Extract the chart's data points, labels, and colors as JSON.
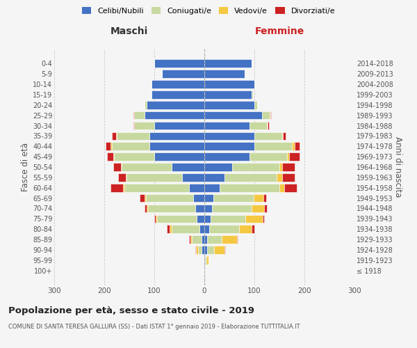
{
  "age_groups": [
    "100+",
    "95-99",
    "90-94",
    "85-89",
    "80-84",
    "75-79",
    "70-74",
    "65-69",
    "60-64",
    "55-59",
    "50-54",
    "45-49",
    "40-44",
    "35-39",
    "30-34",
    "25-29",
    "20-24",
    "15-19",
    "10-14",
    "5-9",
    "0-4"
  ],
  "birth_years": [
    "≤ 1918",
    "1919-1923",
    "1924-1928",
    "1929-1933",
    "1934-1938",
    "1939-1943",
    "1944-1948",
    "1949-1953",
    "1954-1958",
    "1959-1963",
    "1964-1968",
    "1969-1973",
    "1974-1978",
    "1979-1983",
    "1984-1988",
    "1989-1993",
    "1994-1998",
    "1999-2003",
    "2004-2008",
    "2009-2013",
    "2014-2018"
  ],
  "maschi": {
    "celibi": [
      1,
      1,
      5,
      5,
      10,
      15,
      18,
      22,
      30,
      45,
      65,
      100,
      110,
      110,
      100,
      120,
      115,
      105,
      105,
      85,
      100
    ],
    "coniugati": [
      0,
      1,
      8,
      20,
      55,
      80,
      95,
      95,
      130,
      110,
      100,
      80,
      75,
      65,
      40,
      20,
      5,
      2,
      2,
      0,
      0
    ],
    "vedovi": [
      0,
      0,
      3,
      3,
      5,
      2,
      2,
      2,
      2,
      2,
      2,
      2,
      2,
      2,
      0,
      0,
      0,
      0,
      0,
      0,
      0
    ],
    "divorziati": [
      0,
      0,
      2,
      2,
      5,
      3,
      5,
      10,
      25,
      15,
      15,
      12,
      10,
      8,
      2,
      2,
      0,
      0,
      0,
      0,
      0
    ]
  },
  "femmine": {
    "nubili": [
      1,
      2,
      5,
      5,
      10,
      12,
      15,
      18,
      30,
      40,
      55,
      90,
      100,
      100,
      90,
      115,
      100,
      95,
      100,
      80,
      95
    ],
    "coniugate": [
      0,
      2,
      15,
      30,
      60,
      70,
      80,
      80,
      120,
      105,
      95,
      75,
      75,
      55,
      35,
      15,
      5,
      2,
      2,
      0,
      0
    ],
    "vedove": [
      1,
      5,
      20,
      30,
      25,
      35,
      25,
      20,
      10,
      10,
      5,
      5,
      5,
      2,
      2,
      2,
      0,
      0,
      0,
      0,
      0
    ],
    "divorziate": [
      0,
      0,
      2,
      2,
      5,
      2,
      5,
      5,
      25,
      25,
      25,
      20,
      10,
      5,
      2,
      2,
      0,
      0,
      0,
      0,
      0
    ]
  },
  "colors": {
    "celibi_nubili": "#4472c4",
    "coniugati_e": "#c8d9a0",
    "vedovi_e": "#f5c842",
    "divorziati_e": "#cc2222"
  },
  "title": "Popolazione per età, sesso e stato civile - 2019",
  "subtitle": "COMUNE DI SANTA TERESA GALLURA (SS) - Dati ISTAT 1° gennaio 2019 - Elaborazione TUTTITALIA.IT",
  "xlabel_left": "Maschi",
  "xlabel_right": "Femmine",
  "ylabel_left": "Fasce di età",
  "ylabel_right": "Anni di nascita",
  "xlim": 300,
  "legend_labels": [
    "Celibi/Nubili",
    "Coniugati/e",
    "Vedovi/e",
    "Divorziati/e"
  ],
  "background_color": "#f5f5f5"
}
